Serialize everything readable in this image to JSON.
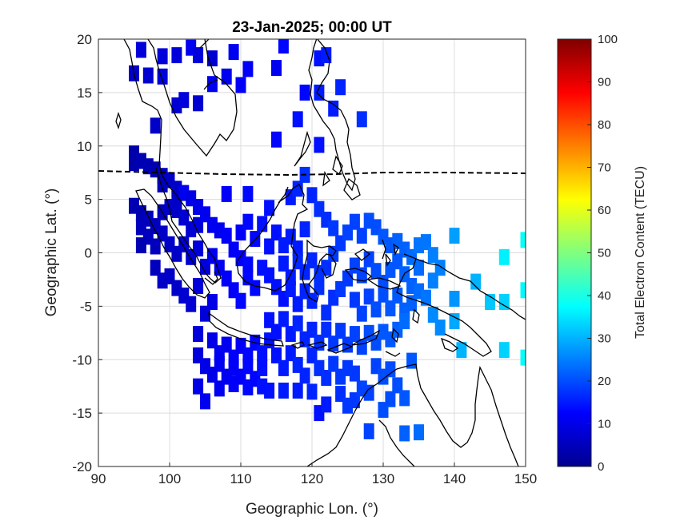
{
  "chart_data": {
    "type": "heatmap",
    "title": "23-Jan-2025; 00:00 UT",
    "xlabel": "Geographic Lon. (°)",
    "ylabel": "Geographic Lat. (°)",
    "xlim": [
      90,
      150
    ],
    "ylim": [
      -20,
      20
    ],
    "xticks": [
      "90",
      "100",
      "110",
      "120",
      "130",
      "140",
      "150"
    ],
    "yticks": [
      "20",
      "15",
      "10",
      "5",
      "0",
      "-5",
      "-10",
      "-15",
      "-20"
    ],
    "grid": true,
    "colorbar": {
      "label": "Total Electron Content (TECU)",
      "range": [
        0,
        100
      ],
      "ticks": [
        "100",
        "90",
        "80",
        "70",
        "60",
        "50",
        "40",
        "30",
        "20",
        "10",
        "0"
      ],
      "colormap": "jet"
    },
    "magnetic_equator_lat": 7.4,
    "points": [
      [
        96,
        19,
        9
      ],
      [
        99,
        18.4,
        9
      ],
      [
        101,
        18.5,
        9
      ],
      [
        103,
        19.2,
        11
      ],
      [
        104,
        18.5,
        9
      ],
      [
        106,
        18.2,
        8
      ],
      [
        109,
        18.8,
        11
      ],
      [
        111,
        17.2,
        12
      ],
      [
        115,
        17.3,
        11
      ],
      [
        116,
        19.4,
        13
      ],
      [
        121,
        18.2,
        14
      ],
      [
        122,
        18.5,
        15
      ],
      [
        95,
        16.8,
        7
      ],
      [
        97,
        16.6,
        8
      ],
      [
        99,
        16.5,
        9
      ],
      [
        106,
        15.8,
        11
      ],
      [
        108,
        16.5,
        11
      ],
      [
        110,
        15.7,
        12
      ],
      [
        119,
        15,
        13
      ],
      [
        121,
        15,
        15
      ],
      [
        124,
        15.5,
        16
      ],
      [
        101,
        13.8,
        8
      ],
      [
        102,
        14.3,
        9
      ],
      [
        104,
        14,
        8
      ],
      [
        118,
        12.5,
        14
      ],
      [
        123,
        13.5,
        15
      ],
      [
        127,
        12.5,
        17
      ],
      [
        98,
        11.9,
        7
      ],
      [
        121,
        10.1,
        14
      ],
      [
        115,
        10.6,
        13
      ],
      [
        95,
        9.3,
        4
      ],
      [
        95,
        8.4,
        4
      ],
      [
        96,
        8.6,
        5
      ],
      [
        97,
        8.1,
        5
      ],
      [
        98,
        7.8,
        5
      ],
      [
        99,
        7.2,
        6
      ],
      [
        99,
        6.4,
        6
      ],
      [
        100,
        6.8,
        7
      ],
      [
        101,
        6,
        7
      ],
      [
        101,
        5.1,
        7
      ],
      [
        95,
        4.4,
        5
      ],
      [
        96,
        3.7,
        5
      ],
      [
        97,
        3.2,
        6
      ],
      [
        98,
        2.5,
        6
      ],
      [
        99,
        3.8,
        6
      ],
      [
        100,
        4.3,
        7
      ],
      [
        101,
        4,
        7
      ],
      [
        102,
        3.3,
        8
      ],
      [
        103,
        2.2,
        8
      ],
      [
        104,
        2.6,
        9
      ],
      [
        96,
        2.4,
        6
      ],
      [
        97,
        1.5,
        6
      ],
      [
        98,
        0.6,
        6
      ],
      [
        99,
        1.8,
        7
      ],
      [
        100,
        0.8,
        7
      ],
      [
        101,
        -0.1,
        7
      ],
      [
        102,
        0.8,
        8
      ],
      [
        103,
        -0.4,
        8
      ],
      [
        104,
        0.4,
        9
      ],
      [
        105,
        -1.3,
        9
      ],
      [
        96,
        0.7,
        5
      ],
      [
        98,
        -1.4,
        6
      ],
      [
        99,
        -2.6,
        7
      ],
      [
        100,
        -2.2,
        7
      ],
      [
        101,
        -3.3,
        7
      ],
      [
        102,
        -4,
        8
      ],
      [
        103,
        -4.8,
        8
      ],
      [
        104,
        -3.1,
        9
      ],
      [
        105,
        -5.7,
        9
      ],
      [
        106,
        -4.6,
        10
      ],
      [
        102,
        5.6,
        11
      ],
      [
        103,
        5.1,
        10
      ],
      [
        104,
        4.3,
        10
      ],
      [
        105,
        3.6,
        11
      ],
      [
        106,
        2.6,
        11
      ],
      [
        107,
        2.1,
        11
      ],
      [
        108,
        1.6,
        12
      ],
      [
        109,
        0.3,
        12
      ],
      [
        110,
        -0.5,
        12
      ],
      [
        111,
        -1.1,
        13
      ],
      [
        106,
        -0.3,
        11
      ],
      [
        107,
        -1.4,
        11
      ],
      [
        108,
        -2.4,
        12
      ],
      [
        109,
        -3.5,
        12
      ],
      [
        110,
        -4.5,
        13
      ],
      [
        111,
        -2.3,
        13
      ],
      [
        112,
        -3.3,
        13
      ],
      [
        113,
        -1.4,
        14
      ],
      [
        114,
        -2.1,
        14
      ],
      [
        115,
        -3.2,
        14
      ],
      [
        110,
        1.9,
        12
      ],
      [
        111,
        2.9,
        13
      ],
      [
        112,
        1.3,
        13
      ],
      [
        113,
        2.7,
        14
      ],
      [
        114,
        0.6,
        14
      ],
      [
        115,
        1.9,
        14
      ],
      [
        116,
        0.7,
        15
      ],
      [
        117,
        1.5,
        15
      ],
      [
        118,
        0.4,
        15
      ],
      [
        119,
        2.2,
        16
      ],
      [
        108,
        5.5,
        12
      ],
      [
        111,
        5.5,
        13
      ],
      [
        114,
        4.2,
        14
      ],
      [
        117,
        5.2,
        15
      ],
      [
        118,
        6,
        16
      ],
      [
        119,
        7.3,
        17
      ],
      [
        120,
        5.4,
        16
      ],
      [
        121,
        4.1,
        17
      ],
      [
        122,
        3.1,
        17
      ],
      [
        123,
        2.3,
        18
      ],
      [
        116,
        -1,
        15
      ],
      [
        117,
        -2.3,
        15
      ],
      [
        118,
        -0.8,
        16
      ],
      [
        119,
        -1.8,
        16
      ],
      [
        120,
        -0.7,
        16
      ],
      [
        121,
        -1.9,
        17
      ],
      [
        122,
        -1.4,
        17
      ],
      [
        123,
        -0.1,
        18
      ],
      [
        124,
        0.9,
        18
      ],
      [
        125,
        1.9,
        19
      ],
      [
        116,
        -4.3,
        14
      ],
      [
        117,
        -3.4,
        15
      ],
      [
        118,
        -4.8,
        15
      ],
      [
        119,
        -3.6,
        16
      ],
      [
        120,
        -4.5,
        16
      ],
      [
        121,
        -3.2,
        17
      ],
      [
        122,
        -5.6,
        17
      ],
      [
        123,
        -4.2,
        17
      ],
      [
        124,
        -3.4,
        18
      ],
      [
        125,
        -2.4,
        18
      ],
      [
        126,
        2.9,
        19
      ],
      [
        127,
        1.6,
        19
      ],
      [
        128,
        3,
        20
      ],
      [
        129,
        2.4,
        20
      ],
      [
        130,
        1.5,
        21
      ],
      [
        131,
        0.7,
        21
      ],
      [
        132,
        1.1,
        22
      ],
      [
        133,
        0.3,
        22
      ],
      [
        134,
        -0.4,
        23
      ],
      [
        135,
        0.7,
        24
      ],
      [
        126,
        -1.2,
        19
      ],
      [
        127,
        -2.1,
        19
      ],
      [
        128,
        -0.6,
        19
      ],
      [
        129,
        -1.7,
        20
      ],
      [
        130,
        -2.8,
        20
      ],
      [
        131,
        -1.6,
        21
      ],
      [
        132,
        -0.8,
        21
      ],
      [
        133,
        -2,
        22
      ],
      [
        134,
        -3.1,
        22
      ],
      [
        135,
        -1.4,
        23
      ],
      [
        126,
        -4.4,
        18
      ],
      [
        127,
        -5.7,
        19
      ],
      [
        128,
        -4.1,
        19
      ],
      [
        129,
        -5.3,
        20
      ],
      [
        130,
        -3.9,
        20
      ],
      [
        131,
        -5.2,
        21
      ],
      [
        132,
        -4,
        21
      ],
      [
        133,
        -5.4,
        22
      ],
      [
        134,
        -4.7,
        22
      ],
      [
        135,
        -3.6,
        23
      ],
      [
        136,
        1,
        24
      ],
      [
        137,
        -0.2,
        25
      ],
      [
        138,
        -1.4,
        25
      ],
      [
        137,
        -2.6,
        25
      ],
      [
        136,
        -4.2,
        24
      ],
      [
        137,
        -5.8,
        26
      ],
      [
        138,
        -7,
        26
      ],
      [
        140,
        1.6,
        28
      ],
      [
        140,
        -4.3,
        27
      ],
      [
        140,
        -6.4,
        29
      ],
      [
        104,
        -7.6,
        9
      ],
      [
        106,
        -8.2,
        10
      ],
      [
        107,
        -9.4,
        11
      ],
      [
        108,
        -8.6,
        11
      ],
      [
        109,
        -9.8,
        12
      ],
      [
        110,
        -8.7,
        12
      ],
      [
        111,
        -9.6,
        13
      ],
      [
        112,
        -8.4,
        13
      ],
      [
        113,
        -9.4,
        14
      ],
      [
        114,
        -8.2,
        14
      ],
      [
        104,
        -9.6,
        9
      ],
      [
        105,
        -10.6,
        10
      ],
      [
        106,
        -11.4,
        10
      ],
      [
        107,
        -10.4,
        11
      ],
      [
        108,
        -11.6,
        11
      ],
      [
        109,
        -10.8,
        12
      ],
      [
        110,
        -11.6,
        12
      ],
      [
        111,
        -10.6,
        13
      ],
      [
        112,
        -11.8,
        13
      ],
      [
        113,
        -10.8,
        14
      ],
      [
        104,
        -12.5,
        10
      ],
      [
        105,
        -13.9,
        11
      ],
      [
        107,
        -12.7,
        11
      ],
      [
        109,
        -12.3,
        12
      ],
      [
        111,
        -12.6,
        13
      ],
      [
        113,
        -12.5,
        14
      ],
      [
        114,
        -12.9,
        14
      ],
      [
        116,
        -12.9,
        15
      ],
      [
        118,
        -12.9,
        15
      ],
      [
        120,
        -13,
        16
      ],
      [
        114,
        -6.3,
        14
      ],
      [
        115,
        -7.4,
        14
      ],
      [
        116,
        -6.2,
        15
      ],
      [
        117,
        -7.6,
        15
      ],
      [
        118,
        -6.6,
        16
      ],
      [
        119,
        -8.1,
        16
      ],
      [
        120,
        -7.2,
        16
      ],
      [
        121,
        -8.4,
        17
      ],
      [
        122,
        -7.2,
        17
      ],
      [
        123,
        -8.5,
        18
      ],
      [
        115,
        -9.6,
        14
      ],
      [
        116,
        -10.8,
        15
      ],
      [
        117,
        -9.4,
        15
      ],
      [
        118,
        -10.5,
        16
      ],
      [
        119,
        -11.5,
        16
      ],
      [
        120,
        -9.6,
        16
      ],
      [
        121,
        -10.8,
        17
      ],
      [
        122,
        -11.7,
        17
      ],
      [
        123,
        -10.4,
        18
      ],
      [
        124,
        -11.6,
        18
      ],
      [
        124,
        -7.3,
        18
      ],
      [
        125,
        -8.6,
        18
      ],
      [
        126,
        -7.6,
        19
      ],
      [
        127,
        -8.8,
        19
      ],
      [
        128,
        -7.5,
        20
      ],
      [
        129,
        -8.4,
        20
      ],
      [
        130,
        -7.4,
        21
      ],
      [
        131,
        -8.1,
        21
      ],
      [
        132,
        -7.2,
        22
      ],
      [
        133,
        -6.4,
        23
      ],
      [
        124,
        -13.2,
        17
      ],
      [
        125,
        -14.3,
        18
      ],
      [
        126,
        -13.8,
        18
      ],
      [
        127,
        -12.7,
        19
      ],
      [
        128,
        -13.1,
        19
      ],
      [
        129,
        -10.6,
        19
      ],
      [
        130,
        -11.6,
        20
      ],
      [
        131,
        -10.9,
        20
      ],
      [
        132,
        -12.4,
        20
      ],
      [
        133,
        -13.6,
        21
      ],
      [
        121,
        -15,
        14
      ],
      [
        122,
        -14.2,
        15
      ],
      [
        130,
        -14.7,
        20
      ],
      [
        131,
        -13.7,
        20
      ],
      [
        134,
        -10.1,
        21
      ],
      [
        133,
        -16.9,
        22
      ],
      [
        135,
        -16.8,
        23
      ],
      [
        128,
        -16.7,
        19
      ],
      [
        125,
        -10.8,
        18
      ],
      [
        126,
        -11.3,
        18
      ],
      [
        143,
        -2.7,
        30
      ],
      [
        145,
        -4.6,
        32
      ],
      [
        147,
        -4.6,
        33
      ],
      [
        147,
        -0.4,
        36
      ],
      [
        150,
        -3.5,
        37
      ],
      [
        150,
        1.2,
        38
      ],
      [
        141,
        -9.1,
        30
      ],
      [
        147,
        -9.1,
        33
      ],
      [
        150,
        -9.8,
        38
      ]
    ]
  }
}
